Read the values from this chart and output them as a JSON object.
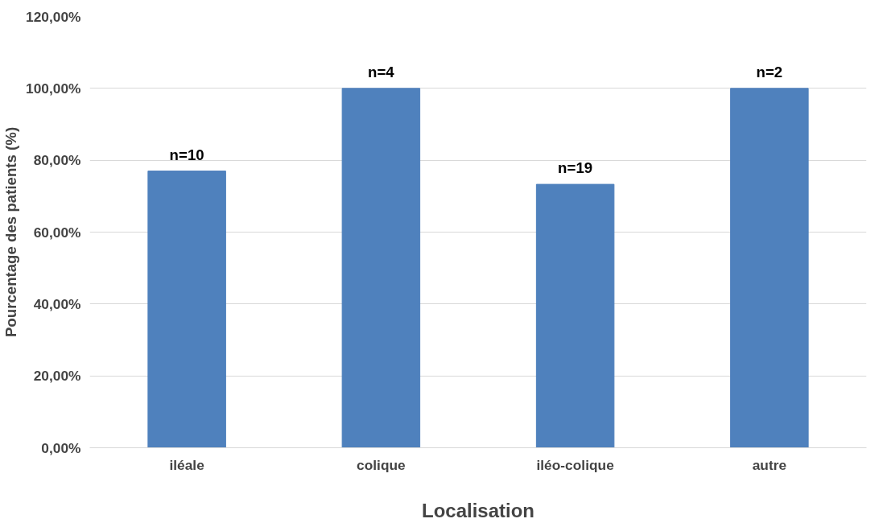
{
  "chart_data": {
    "type": "bar",
    "xlabel": "Localisation",
    "ylabel": "Pourcentage des patients (%)",
    "categories": [
      "iléale",
      "colique",
      "iléo-colique",
      "autre"
    ],
    "values": [
      77.0,
      100,
      73.3,
      100
    ],
    "annotations": [
      {
        "text": "n=10",
        "x": "iléale",
        "y": 77.0
      },
      {
        "text": "n=4",
        "x": "colique",
        "y": 100
      },
      {
        "text": "n=19",
        "x": "iléo-colique",
        "y": 73.3
      },
      {
        "text": "n=2",
        "x": "autre",
        "y": 100
      }
    ],
    "color": "#4f81bd",
    "ylim": [
      0,
      120
    ],
    "yticks": [
      {
        "value": 0,
        "label": "0,00%"
      },
      {
        "value": 20,
        "label": "20,00%"
      },
      {
        "value": 40,
        "label": "40,00%"
      },
      {
        "value": 60,
        "label": "60,00%"
      },
      {
        "value": 80,
        "label": "80,00%"
      },
      {
        "value": 100,
        "label": "100,00%"
      },
      {
        "value": 120,
        "label": "120,00%"
      }
    ],
    "grid": "y"
  }
}
